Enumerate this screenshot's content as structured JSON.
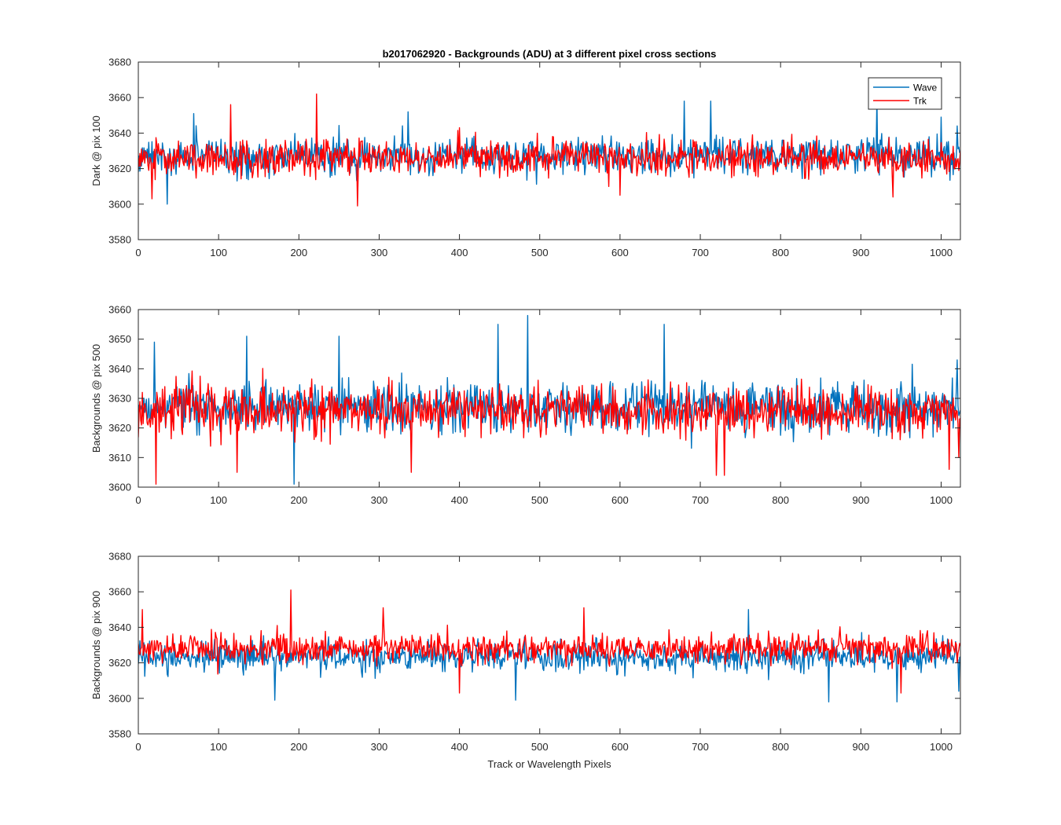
{
  "chart_data": {
    "type": "line",
    "title": "b2017062920 - Backgrounds (ADU) at 3 different pixel cross sections",
    "xlabel": "Track or Wavelength Pixels",
    "x_range": [
      0,
      1024
    ],
    "xlim": [
      0,
      1024
    ],
    "xticks": [
      0,
      100,
      200,
      300,
      400,
      500,
      600,
      700,
      800,
      900,
      1000
    ],
    "colors": {
      "Wave": "#0072BD",
      "Trk": "#FF0000"
    },
    "legend": {
      "entries": [
        "Wave",
        "Trk"
      ],
      "placement": "top-right"
    },
    "panels": [
      {
        "ylabel": "Dark @ pix 100",
        "ylim": [
          3580,
          3680
        ],
        "yticks": [
          3580,
          3600,
          3620,
          3640,
          3660,
          3680
        ],
        "series": [
          {
            "name": "Wave",
            "mean": 3627,
            "spread": 7,
            "spikes": [
              [
                0,
                3618
              ],
              [
                36,
                3600
              ],
              [
                69,
                3651
              ],
              [
                336,
                3652
              ],
              [
                680,
                3658
              ],
              [
                713,
                3658
              ],
              [
                920,
                3660
              ],
              [
                1000,
                3649
              ],
              [
                1020,
                3644
              ]
            ]
          },
          {
            "name": "Trk",
            "mean": 3626,
            "spread": 7,
            "spikes": [
              [
                17,
                3603
              ],
              [
                115,
                3656
              ],
              [
                222,
                3662
              ],
              [
                273,
                3599
              ],
              [
                400,
                3643
              ],
              [
                600,
                3605
              ],
              [
                940,
                3604
              ]
            ]
          }
        ]
      },
      {
        "ylabel": "Backgrounds @ pix 500",
        "ylim": [
          3600,
          3660
        ],
        "yticks": [
          3600,
          3610,
          3620,
          3630,
          3640,
          3650,
          3660
        ],
        "series": [
          {
            "name": "Wave",
            "mean": 3627,
            "spread": 6,
            "spikes": [
              [
                20,
                3649
              ],
              [
                135,
                3651
              ],
              [
                194,
                3601
              ],
              [
                250,
                3651
              ],
              [
                448,
                3655
              ],
              [
                485,
                3658
              ],
              [
                655,
                3655
              ],
              [
                1020,
                3643
              ]
            ]
          },
          {
            "name": "Trk",
            "mean": 3626,
            "spread": 6,
            "spikes": [
              [
                22,
                3601
              ],
              [
                123,
                3605
              ],
              [
                340,
                3605
              ],
              [
                720,
                3604
              ],
              [
                730,
                3604
              ],
              [
                1010,
                3606
              ],
              [
                1022,
                3610
              ]
            ]
          }
        ]
      },
      {
        "ylabel": "Backgrounds @ pix 900",
        "ylim": [
          3580,
          3680
        ],
        "yticks": [
          3580,
          3600,
          3620,
          3640,
          3660,
          3680
        ],
        "series": [
          {
            "name": "Wave",
            "mean": 3623,
            "spread": 6,
            "spikes": [
              [
                170,
                3599
              ],
              [
                470,
                3599
              ],
              [
                760,
                3650
              ],
              [
                860,
                3598
              ],
              [
                945,
                3598
              ],
              [
                1022,
                3604
              ]
            ]
          },
          {
            "name": "Trk",
            "mean": 3628,
            "spread": 6,
            "spikes": [
              [
                5,
                3650
              ],
              [
                190,
                3661
              ],
              [
                305,
                3651
              ],
              [
                400,
                3603
              ],
              [
                555,
                3651
              ],
              [
                950,
                3603
              ]
            ]
          }
        ]
      }
    ]
  }
}
